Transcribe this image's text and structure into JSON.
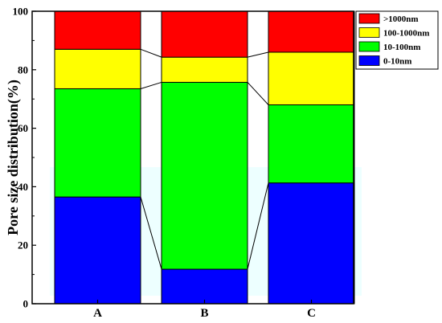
{
  "chart_data": {
    "type": "bar",
    "stacked": true,
    "categories": [
      "A",
      "B",
      "C"
    ],
    "ylabel": "Pore size distribution(%)",
    "xlabel": "",
    "ylim": [
      0,
      100
    ],
    "yticks": [
      0,
      20,
      40,
      60,
      80,
      100
    ],
    "legend_position": "top-right",
    "series": [
      {
        "name": "0-10nm",
        "color": "#0000ff",
        "values": [
          36.5,
          11.8,
          41.3
        ]
      },
      {
        "name": "10-100nm",
        "color": "#00ff00",
        "values": [
          37.0,
          63.9,
          26.7
        ]
      },
      {
        "name": "100-1000nm",
        "color": "#ffff00",
        "values": [
          13.5,
          8.6,
          18.0
        ]
      },
      {
        "name": ">1000nm",
        "color": "#ff0000",
        "values": [
          13.0,
          15.7,
          14.0
        ]
      }
    ],
    "connector_lines": true
  }
}
